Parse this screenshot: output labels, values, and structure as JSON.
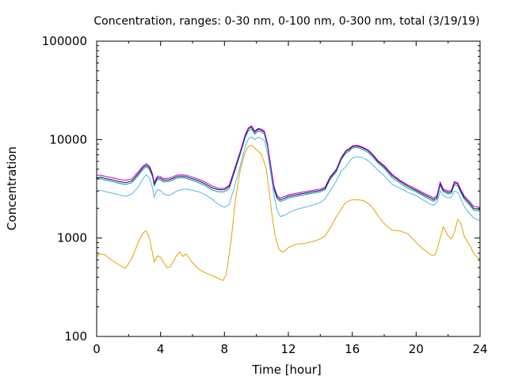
{
  "chart_data": {
    "type": "line",
    "title": "Concentration, ranges: 0-30 nm, 0-100 nm, 0-300 nm, total (3/19/19)",
    "xlabel": "Time [hour]",
    "ylabel": "Concentration",
    "xlim": [
      0,
      24
    ],
    "ylim": [
      100,
      100000
    ],
    "yscale": "log",
    "grid": false,
    "legend": "none",
    "x_ticks": [
      0,
      4,
      8,
      12,
      16,
      20,
      24
    ],
    "y_ticks": [
      100,
      1000,
      10000,
      100000
    ],
    "x_tick_labels": [
      "0",
      "4",
      "8",
      "12",
      "16",
      "20",
      "24"
    ],
    "y_tick_labels": [
      "100",
      "1000",
      "10000",
      "100000"
    ],
    "series": [
      {
        "color": "#e6a000",
        "x": [
          0.0,
          0.2,
          0.5,
          0.8,
          1.2,
          1.6,
          1.8,
          2.2,
          2.6,
          2.9,
          3.1,
          3.3,
          3.5,
          3.6,
          3.8,
          4.0,
          4.2,
          4.4,
          4.6,
          4.8,
          5.0,
          5.2,
          5.4,
          5.6,
          5.8,
          6.0,
          6.3,
          6.6,
          7.0,
          7.3,
          7.6,
          7.9,
          8.1,
          8.4,
          8.7,
          9.0,
          9.3,
          9.5,
          9.7,
          10.0,
          10.3,
          10.6,
          10.8,
          11.0,
          11.2,
          11.4,
          11.6,
          11.8,
          12.0,
          12.5,
          13.0,
          13.5,
          14.0,
          14.3,
          14.6,
          15.0,
          15.3,
          15.5,
          15.7,
          16.0,
          16.3,
          16.7,
          17.0,
          17.3,
          17.6,
          18.0,
          18.5,
          19.0,
          19.5,
          20.0,
          20.4,
          20.8,
          21.0,
          21.2,
          21.3,
          21.5,
          21.7,
          22.0,
          22.2,
          22.4,
          22.6,
          22.8,
          23.0,
          23.2,
          23.4,
          23.6,
          23.8,
          24.0
        ],
        "y": [
          650,
          690,
          680,
          620,
          560,
          510,
          490,
          620,
          900,
          1130,
          1180,
          1000,
          700,
          570,
          660,
          640,
          560,
          500,
          510,
          580,
          660,
          720,
          650,
          690,
          620,
          560,
          500,
          460,
          430,
          410,
          390,
          370,
          420,
          900,
          2500,
          5000,
          7500,
          8500,
          8800,
          7900,
          7200,
          5200,
          3000,
          1600,
          1000,
          780,
          720,
          740,
          800,
          870,
          880,
          920,
          980,
          1050,
          1250,
          1650,
          1950,
          2200,
          2350,
          2450,
          2450,
          2400,
          2250,
          2000,
          1700,
          1400,
          1200,
          1180,
          1100,
          900,
          780,
          700,
          660,
          680,
          750,
          1000,
          1300,
          1050,
          980,
          1150,
          1550,
          1400,
          1050,
          920,
          820,
          700,
          640,
          610
        ]
      },
      {
        "color": "#56b4e9",
        "x": [
          0.0,
          0.3,
          0.6,
          1.0,
          1.4,
          1.8,
          2.2,
          2.6,
          2.9,
          3.1,
          3.3,
          3.5,
          3.6,
          3.8,
          4.0,
          4.2,
          4.5,
          4.8,
          5.0,
          5.3,
          5.6,
          6.0,
          6.4,
          6.8,
          7.2,
          7.6,
          8.0,
          8.3,
          8.6,
          9.0,
          9.3,
          9.5,
          9.7,
          9.9,
          10.1,
          10.3,
          10.5,
          10.7,
          10.9,
          11.1,
          11.3,
          11.5,
          11.8,
          12.0,
          12.5,
          13.0,
          13.5,
          14.0,
          14.3,
          14.6,
          15.0,
          15.3,
          15.6,
          15.8,
          16.0,
          16.3,
          16.6,
          17.0,
          17.3,
          17.6,
          18.0,
          18.5,
          19.0,
          19.5,
          20.0,
          20.5,
          20.9,
          21.1,
          21.3,
          21.5,
          21.7,
          22.0,
          22.2,
          22.4,
          22.6,
          22.8,
          23.0,
          23.3,
          23.6,
          24.0
        ],
        "y": [
          3000,
          3050,
          2950,
          2850,
          2750,
          2650,
          2800,
          3300,
          4000,
          4400,
          4100,
          3200,
          2600,
          3100,
          3050,
          2800,
          2700,
          2850,
          3000,
          3100,
          3150,
          3050,
          2950,
          2750,
          2500,
          2200,
          2050,
          2200,
          3200,
          5500,
          8500,
          10200,
          10700,
          10000,
          10600,
          10300,
          9800,
          7200,
          4500,
          2700,
          1900,
          1650,
          1720,
          1800,
          1950,
          2050,
          2150,
          2300,
          2500,
          3000,
          3800,
          4800,
          5300,
          5900,
          6500,
          6700,
          6600,
          6100,
          5500,
          4900,
          4300,
          3500,
          3200,
          2900,
          2700,
          2400,
          2200,
          2150,
          2300,
          3000,
          2700,
          2550,
          2600,
          3000,
          2900,
          2500,
          2100,
          1800,
          1600,
          1500
        ]
      },
      {
        "color": "#009e73",
        "x": [
          0.0,
          0.3,
          0.6,
          1.0,
          1.4,
          1.8,
          2.2,
          2.6,
          2.9,
          3.1,
          3.3,
          3.5,
          3.6,
          3.8,
          4.0,
          4.2,
          4.5,
          4.8,
          5.0,
          5.3,
          5.6,
          6.0,
          6.4,
          6.8,
          7.2,
          7.6,
          8.0,
          8.3,
          8.6,
          9.0,
          9.3,
          9.5,
          9.7,
          9.9,
          10.1,
          10.3,
          10.5,
          10.7,
          10.9,
          11.1,
          11.3,
          11.5,
          11.8,
          12.0,
          12.5,
          13.0,
          13.5,
          14.0,
          14.3,
          14.6,
          15.0,
          15.3,
          15.6,
          15.8,
          16.0,
          16.3,
          16.6,
          17.0,
          17.3,
          17.6,
          18.0,
          18.5,
          19.0,
          19.5,
          20.0,
          20.5,
          20.9,
          21.1,
          21.3,
          21.5,
          21.7,
          22.0,
          22.2,
          22.4,
          22.6,
          22.8,
          23.0,
          23.3,
          23.6,
          24.0
        ],
        "y": [
          3950,
          4000,
          3850,
          3750,
          3600,
          3500,
          3650,
          4300,
          5000,
          5300,
          5000,
          4200,
          3400,
          3950,
          3900,
          3700,
          3750,
          3900,
          4050,
          4100,
          4050,
          3850,
          3650,
          3400,
          3100,
          2950,
          2950,
          3200,
          4500,
          7200,
          10500,
          12300,
          12800,
          11400,
          12200,
          12000,
          11400,
          8400,
          5100,
          3100,
          2500,
          2350,
          2450,
          2550,
          2650,
          2750,
          2850,
          2950,
          3100,
          3900,
          4700,
          6200,
          7300,
          7600,
          8200,
          8300,
          8000,
          7400,
          6600,
          5800,
          5100,
          4100,
          3600,
          3200,
          2950,
          2650,
          2450,
          2350,
          2500,
          3450,
          2950,
          2800,
          2850,
          3500,
          3400,
          2900,
          2500,
          2200,
          1920,
          1880
        ]
      },
      {
        "color": "#000080",
        "x": [
          0.0,
          0.3,
          0.6,
          1.0,
          1.4,
          1.8,
          2.2,
          2.6,
          2.9,
          3.1,
          3.3,
          3.5,
          3.6,
          3.8,
          4.0,
          4.2,
          4.5,
          4.8,
          5.0,
          5.3,
          5.6,
          6.0,
          6.4,
          6.8,
          7.2,
          7.6,
          8.0,
          8.3,
          8.6,
          9.0,
          9.3,
          9.5,
          9.7,
          9.9,
          10.1,
          10.3,
          10.5,
          10.7,
          10.9,
          11.1,
          11.3,
          11.5,
          11.8,
          12.0,
          12.5,
          13.0,
          13.5,
          14.0,
          14.3,
          14.6,
          15.0,
          15.3,
          15.6,
          15.8,
          16.0,
          16.3,
          16.6,
          17.0,
          17.3,
          17.6,
          18.0,
          18.5,
          19.0,
          19.5,
          20.0,
          20.5,
          20.9,
          21.1,
          21.3,
          21.5,
          21.7,
          22.0,
          22.2,
          22.4,
          22.6,
          22.8,
          23.0,
          23.3,
          23.6,
          24.0
        ],
        "y": [
          4100,
          4150,
          4000,
          3900,
          3750,
          3650,
          3800,
          4500,
          5200,
          5500,
          5200,
          4350,
          3550,
          4100,
          4050,
          3850,
          3900,
          4050,
          4200,
          4250,
          4200,
          4000,
          3800,
          3550,
          3250,
          3100,
          3100,
          3350,
          4700,
          7500,
          11000,
          12900,
          13400,
          11900,
          12700,
          12500,
          11900,
          8800,
          5300,
          3250,
          2600,
          2450,
          2550,
          2650,
          2750,
          2850,
          2950,
          3050,
          3200,
          4050,
          4900,
          6400,
          7600,
          7900,
          8500,
          8600,
          8300,
          7700,
          6900,
          6000,
          5300,
          4300,
          3750,
          3350,
          3050,
          2750,
          2550,
          2450,
          2600,
          3600,
          3050,
          2900,
          2950,
          3650,
          3550,
          3000,
          2600,
          2300,
          2000,
          1950
        ]
      },
      {
        "color": "#cc00cc",
        "x": [
          0.0,
          0.3,
          0.6,
          1.0,
          1.4,
          1.8,
          2.2,
          2.6,
          2.9,
          3.1,
          3.3,
          3.5,
          3.6,
          3.8,
          4.0,
          4.2,
          4.5,
          4.8,
          5.0,
          5.3,
          5.6,
          6.0,
          6.4,
          6.8,
          7.2,
          7.6,
          8.0,
          8.3,
          8.6,
          9.0,
          9.3,
          9.5,
          9.7,
          9.9,
          10.1,
          10.3,
          10.5,
          10.7,
          10.9,
          11.1,
          11.3,
          11.5,
          11.8,
          12.0,
          12.5,
          13.0,
          13.5,
          14.0,
          14.3,
          14.6,
          15.0,
          15.3,
          15.6,
          15.8,
          16.0,
          16.3,
          16.6,
          17.0,
          17.3,
          17.6,
          18.0,
          18.5,
          19.0,
          19.5,
          20.0,
          20.5,
          20.9,
          21.1,
          21.3,
          21.5,
          21.7,
          22.0,
          22.2,
          22.4,
          22.6,
          22.8,
          23.0,
          23.3,
          23.6,
          24.0
        ],
        "y": [
          4350,
          4350,
          4200,
          4100,
          3950,
          3850,
          4000,
          4700,
          5400,
          5700,
          5400,
          4500,
          3650,
          4250,
          4200,
          4000,
          4050,
          4200,
          4350,
          4400,
          4350,
          4150,
          3950,
          3700,
          3400,
          3200,
          3200,
          3450,
          4850,
          7700,
          11300,
          13200,
          13800,
          12200,
          13000,
          12800,
          12200,
          9000,
          5450,
          3350,
          2700,
          2550,
          2650,
          2750,
          2850,
          2950,
          3050,
          3150,
          3300,
          4150,
          5000,
          6550,
          7750,
          8050,
          8650,
          8750,
          8450,
          7850,
          7050,
          6150,
          5450,
          4450,
          3850,
          3450,
          3150,
          2850,
          2650,
          2550,
          2700,
          3700,
          3150,
          3000,
          3050,
          3750,
          3650,
          3100,
          2700,
          2400,
          2100,
          2050
        ]
      }
    ]
  }
}
